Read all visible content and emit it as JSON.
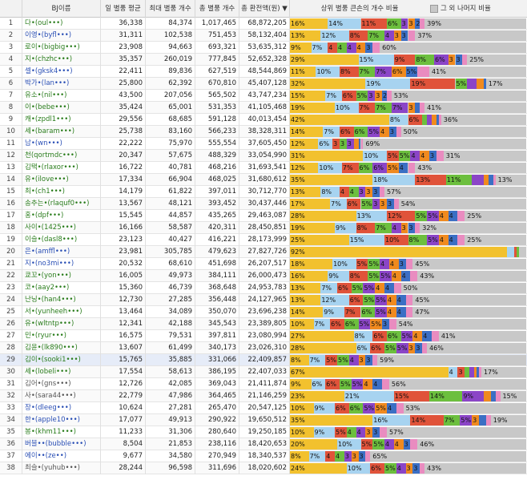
{
  "header": {
    "rank": "",
    "name": "BJ이름",
    "avg": "일 별풍 평균",
    "max": "최대 별풍 개수",
    "total": "총 별풍 개수",
    "revenue": "총 환전액(원) ▼",
    "ratio": "상위 별풍 큰손의 개수 비율",
    "legend": "그 외 나머지 비율"
  },
  "colors": [
    "#f2c12e",
    "#a7d3f0",
    "#e0533a",
    "#6cbf3e",
    "#8b45c7",
    "#f08a1f",
    "#3b6fc4",
    "#e98cc0"
  ],
  "rest_color": "#c8c8c8",
  "rows": [
    {
      "num": "1",
      "name": "다•(oul•••)",
      "avg": "36,338",
      "max": "84,374",
      "total": "1,017,465",
      "rev": "68,872,205",
      "segs": [
        16,
        14,
        11,
        6,
        3,
        3,
        2,
        2
      ],
      "labels": [
        "16%",
        "14%",
        "11%",
        "6%",
        "3",
        "3",
        "2",
        ""
      ],
      "tail": "39%"
    },
    {
      "num": "2",
      "name": "이영•(byfl•••)",
      "avg": "31,311",
      "max": "102,538",
      "total": "751,453",
      "rev": "58,132,404",
      "segs": [
        13,
        12,
        8,
        7,
        4,
        3,
        3,
        3
      ],
      "labels": [
        "13%",
        "12%",
        "8%",
        "7%",
        "4",
        "3",
        "3",
        ""
      ],
      "tail": "37%"
    },
    {
      "num": "3",
      "name": "로이•(bigbig•••)",
      "avg": "23,908",
      "max": "94,663",
      "total": "693,321",
      "rev": "53,635,312",
      "segs": [
        9,
        7,
        4,
        4,
        4,
        4,
        3,
        3
      ],
      "labels": [
        "9%",
        "7%",
        "4",
        "4",
        "4",
        "4",
        "3",
        ""
      ],
      "tail": "60%"
    },
    {
      "num": "4",
      "name": "지•(chzhc•••)",
      "avg": "35,357",
      "max": "260,019",
      "total": "777,845",
      "rev": "52,652,328",
      "segs": [
        29,
        15,
        9,
        8,
        6,
        3,
        3,
        2
      ],
      "labels": [
        "29%",
        "15%",
        "9%",
        "8%",
        "6%",
        "3",
        "3",
        ""
      ],
      "tail": "25%"
    },
    {
      "num": "5",
      "name": "셀•(gksk4•••)",
      "avg": "22,411",
      "max": "89,836",
      "total": "627,519",
      "rev": "48,544,869",
      "segs": [
        11,
        10,
        8,
        7,
        7,
        6,
        5,
        5
      ],
      "labels": [
        "11%",
        "10%",
        "8%",
        "7%",
        "7%",
        "6%",
        "5%",
        ""
      ],
      "tail": "41%"
    },
    {
      "num": "6",
      "name": "박가•(lan•••)",
      "avg": "25,800",
      "max": "62,392",
      "total": "670,810",
      "rev": "45,407,128",
      "segs": [
        32,
        19,
        19,
        5,
        4,
        3,
        1,
        0
      ],
      "labels": [
        "32%",
        "19%",
        "19%",
        "5%",
        "",
        "",
        "",
        ""
      ],
      "tail": "17%"
    },
    {
      "num": "7",
      "name": "유소•(nil•••)",
      "avg": "43,500",
      "max": "207,056",
      "total": "565,502",
      "rev": "43,747,234",
      "segs": [
        15,
        7,
        6,
        5,
        3,
        3,
        2,
        2
      ],
      "labels": [
        "15%",
        "7%",
        "6%",
        "5%",
        "3",
        "3",
        "2",
        ""
      ],
      "tail": "53%"
    },
    {
      "num": "8",
      "name": "이•(bebe•••)",
      "avg": "35,424",
      "max": "65,001",
      "total": "531,353",
      "rev": "41,105,468",
      "segs": [
        19,
        10,
        7,
        7,
        7,
        3,
        2,
        2
      ],
      "labels": [
        "19%",
        "10%",
        "7%",
        "7%",
        "7%",
        "3",
        "",
        ""
      ],
      "tail": "41%"
    },
    {
      "num": "9",
      "name": "캐•(zpdl1•••)",
      "avg": "29,556",
      "max": "68,685",
      "total": "591,128",
      "rev": "40,013,454",
      "segs": [
        42,
        8,
        6,
        2,
        2,
        2,
        1,
        1
      ],
      "labels": [
        "42%",
        "8%",
        "6%",
        "",
        "",
        "",
        "",
        ""
      ],
      "tail": "36%"
    },
    {
      "num": "10",
      "name": "세•(baram•••)",
      "avg": "25,738",
      "max": "83,160",
      "total": "566,233",
      "rev": "38,328,311",
      "segs": [
        14,
        7,
        6,
        6,
        5,
        4,
        3,
        2
      ],
      "labels": [
        "14%",
        "7%",
        "6%",
        "6%",
        "5%",
        "4",
        "3",
        ""
      ],
      "tail": "50%"
    },
    {
      "num": "11",
      "name": "남•(wn•••)",
      "avg": "22,222",
      "max": "75,970",
      "total": "555,554",
      "rev": "37,605,450",
      "segs": [
        12,
        6,
        3,
        3,
        3,
        2,
        1,
        1
      ],
      "labels": [
        "12%",
        "6%",
        "3",
        "3",
        "3",
        "",
        "",
        ""
      ],
      "tail": "69%"
    },
    {
      "num": "12",
      "name": "천(qortmdc•••)",
      "avg": "20,347",
      "max": "57,675",
      "total": "488,329",
      "rev": "33,054,990",
      "segs": [
        31,
        10,
        5,
        5,
        4,
        4,
        3,
        3
      ],
      "labels": [
        "31%",
        "10%",
        "5%",
        "5%",
        "4",
        "4",
        "3",
        ""
      ],
      "tail": "31%"
    },
    {
      "num": "13",
      "name": "김택•(rlaxor•••)",
      "avg": "16,722",
      "max": "40,781",
      "total": "468,216",
      "rev": "31,693,541",
      "segs": [
        12,
        10,
        7,
        6,
        6,
        5,
        4,
        3
      ],
      "labels": [
        "12%",
        "10%",
        "7%",
        "6%",
        "6%",
        "5%",
        "4",
        ""
      ],
      "tail": "43%"
    },
    {
      "num": "14",
      "name": "유•(ilove•••)",
      "avg": "17,334",
      "max": "66,904",
      "total": "468,025",
      "rev": "31,680,612",
      "segs": [
        35,
        18,
        13,
        11,
        5,
        2,
        2,
        1
      ],
      "labels": [
        "35%",
        "18%",
        "13%",
        "11%",
        "",
        "",
        "",
        ""
      ],
      "tail": "13%"
    },
    {
      "num": "15",
      "name": "최•(ch1•••)",
      "avg": "14,179",
      "max": "61,822",
      "total": "397,011",
      "rev": "30,712,770",
      "segs": [
        13,
        8,
        4,
        4,
        3,
        3,
        3,
        2
      ],
      "labels": [
        "13%",
        "8%",
        "4",
        "4",
        "3",
        "3",
        "3",
        ""
      ],
      "tail": "57%"
    },
    {
      "num": "16",
      "name": "송추는•(rlaquf0•••)",
      "avg": "13,567",
      "max": "48,121",
      "total": "393,452",
      "rev": "30,437,446",
      "segs": [
        17,
        7,
        6,
        5,
        3,
        3,
        3,
        2
      ],
      "labels": [
        "17%",
        "7%",
        "6%",
        "5%",
        "3",
        "3",
        "3",
        ""
      ],
      "tail": "54%"
    },
    {
      "num": "17",
      "name": "홍•(dpf•••)",
      "avg": "15,545",
      "max": "44,857",
      "total": "435,265",
      "rev": "29,463,087",
      "segs": [
        28,
        13,
        12,
        5,
        5,
        4,
        4,
        3
      ],
      "labels": [
        "28%",
        "13%",
        "12%",
        "5%",
        "5%",
        "4",
        "4",
        ""
      ],
      "tail": "25%"
    },
    {
      "num": "18",
      "name": "사이•(1425•••)",
      "avg": "16,166",
      "max": "58,587",
      "total": "420,311",
      "rev": "28,450,851",
      "segs": [
        19,
        9,
        8,
        7,
        4,
        3,
        3,
        2
      ],
      "labels": [
        "19%",
        "9%",
        "8%",
        "7%",
        "4",
        "3",
        "3",
        ""
      ],
      "tail": "32%"
    },
    {
      "num": "19",
      "name": "이슬•(dasl8•••)",
      "avg": "23,123",
      "max": "40,427",
      "total": "416,221",
      "rev": "28,173,999",
      "segs": [
        25,
        15,
        10,
        8,
        5,
        4,
        4,
        3
      ],
      "labels": [
        "25%",
        "15%",
        "10%",
        "8%",
        "5%",
        "4",
        "4",
        ""
      ],
      "tail": "25%"
    },
    {
      "num": "20",
      "name": "은•(amffl•••)",
      "avg": "23,981",
      "max": "305,785",
      "total": "479,623",
      "rev": "27,827,726",
      "segs": [
        92,
        3,
        1,
        1,
        0,
        0,
        0,
        0
      ],
      "labels": [
        "92%",
        "",
        "",
        "",
        "",
        "",
        "",
        ""
      ],
      "tail": ""
    },
    {
      "num": "21",
      "name": "지•(no3mi•••)",
      "avg": "20,532",
      "max": "68,610",
      "total": "451,698",
      "rev": "26,207,517",
      "segs": [
        18,
        10,
        5,
        5,
        4,
        4,
        3,
        3
      ],
      "labels": [
        "18%",
        "10%",
        "5%",
        "5%",
        "4",
        "4",
        "3",
        ""
      ],
      "tail": "45%"
    },
    {
      "num": "22",
      "name": "쿄꼬•(yon•••)",
      "avg": "16,005",
      "max": "49,973",
      "total": "384,111",
      "rev": "26,000,473",
      "segs": [
        16,
        9,
        8,
        5,
        5,
        4,
        4,
        3
      ],
      "labels": [
        "16%",
        "9%",
        "8%",
        "5%",
        "5%",
        "4",
        "4",
        ""
      ],
      "tail": "43%"
    },
    {
      "num": "23",
      "name": "코•(aay2•••)",
      "avg": "15,360",
      "max": "46,739",
      "total": "368,648",
      "rev": "24,953,783",
      "segs": [
        13,
        7,
        6,
        5,
        5,
        4,
        4,
        3
      ],
      "labels": [
        "13%",
        "7%",
        "6%",
        "5%",
        "5%",
        "4",
        "4",
        ""
      ],
      "tail": "50%"
    },
    {
      "num": "24",
      "name": "난닝•(han4•••)",
      "avg": "12,730",
      "max": "27,285",
      "total": "356,448",
      "rev": "24,127,965",
      "segs": [
        13,
        12,
        6,
        5,
        5,
        4,
        4,
        3
      ],
      "labels": [
        "13%",
        "12%",
        "6%",
        "5%",
        "5%",
        "4",
        "4",
        ""
      ],
      "tail": "45%"
    },
    {
      "num": "25",
      "name": "서•(yunheeh•••)",
      "avg": "13,464",
      "max": "34,089",
      "total": "350,070",
      "rev": "23,696,238",
      "segs": [
        14,
        9,
        7,
        6,
        5,
        4,
        4,
        3
      ],
      "labels": [
        "14%",
        "9%",
        "7%",
        "6%",
        "5%",
        "4",
        "4",
        ""
      ],
      "tail": "47%"
    },
    {
      "num": "26",
      "name": "유•(wltntp•••)",
      "avg": "12,341",
      "max": "42,188",
      "total": "345,543",
      "rev": "23,389,805",
      "segs": [
        10,
        7,
        6,
        6,
        5,
        5,
        3,
        3
      ],
      "labels": [
        "10%",
        "7%",
        "6%",
        "6%",
        "5%",
        "5%",
        "3",
        ""
      ],
      "tail": "54%"
    },
    {
      "num": "27",
      "name": "민•(ryur•••)",
      "avg": "16,575",
      "max": "79,531",
      "total": "397,811",
      "rev": "23,080,994",
      "segs": [
        27,
        8,
        6,
        6,
        5,
        4,
        4,
        3
      ],
      "labels": [
        "27%",
        "8%",
        "6%",
        "6%",
        "5%",
        "4",
        "4",
        ""
      ],
      "tail": "41%"
    },
    {
      "num": "28",
      "name": "김윤•(lk890•••)",
      "avg": "13,607",
      "max": "61,499",
      "total": "340,173",
      "rev": "23,026,310",
      "segs": [
        28,
        6,
        6,
        5,
        5,
        3,
        3,
        2
      ],
      "labels": [
        "28%",
        "6%",
        "6%",
        "5%",
        "5%",
        "3",
        "3",
        ""
      ],
      "tail": "46%"
    },
    {
      "num": "29",
      "name": "김이•(sooki1•••)",
      "avg": "15,765",
      "max": "35,885",
      "total": "331,066",
      "rev": "22,409,857",
      "segs": [
        8,
        7,
        5,
        5,
        4,
        3,
        3,
        2
      ],
      "labels": [
        "8%",
        "7%",
        "5%",
        "5%",
        "4",
        "3",
        "3",
        ""
      ],
      "tail": "59%"
    },
    {
      "num": "30",
      "name": "세•(lobeli•••)",
      "avg": "17,554",
      "max": "58,613",
      "total": "386,195",
      "rev": "22,407,033",
      "segs": [
        67,
        4,
        3,
        2,
        2,
        1,
        1,
        1
      ],
      "labels": [
        "67%",
        "4",
        "3",
        "",
        "",
        "",
        "",
        ""
      ],
      "tail": "17%"
    },
    {
      "num": "31",
      "name": "김어•(gns•••)",
      "avg": "12,726",
      "max": "42,085",
      "total": "369,043",
      "rev": "21,411,874",
      "segs": [
        9,
        6,
        6,
        5,
        5,
        4,
        4,
        3
      ],
      "labels": [
        "9%",
        "6%",
        "6%",
        "5%",
        "5%",
        "4",
        "4",
        ""
      ],
      "tail": "56%"
    },
    {
      "num": "32",
      "name": "사•(sara44•••)",
      "avg": "22,779",
      "max": "47,986",
      "total": "364,465",
      "rev": "21,146,259",
      "segs": [
        23,
        21,
        15,
        14,
        9,
        3,
        2,
        2
      ],
      "labels": [
        "23%",
        "21%",
        "15%",
        "14%",
        "9%",
        "",
        "",
        ""
      ],
      "tail": "15%"
    },
    {
      "num": "33",
      "name": "장•(dleeg•••)",
      "avg": "10,624",
      "max": "27,281",
      "total": "265,470",
      "rev": "20,547,125",
      "segs": [
        10,
        9,
        6,
        6,
        5,
        5,
        4,
        3
      ],
      "labels": [
        "10%",
        "9%",
        "6%",
        "6%",
        "5%",
        "5%",
        "4",
        ""
      ],
      "tail": "53%"
    },
    {
      "num": "34",
      "name": "한•(apple10•••)",
      "avg": "17,077",
      "max": "49,913",
      "total": "290,922",
      "rev": "19,650,512",
      "segs": [
        35,
        16,
        14,
        7,
        5,
        3,
        3,
        2
      ],
      "labels": [
        "35%",
        "16%",
        "14%",
        "7%",
        "5%",
        "3",
        "",
        ""
      ],
      "tail": "19%"
    },
    {
      "num": "35",
      "name": "봉•(khm11•••)",
      "avg": "11,233",
      "max": "31,306",
      "total": "280,640",
      "rev": "19,250,185",
      "segs": [
        10,
        9,
        5,
        4,
        4,
        3,
        3,
        3
      ],
      "labels": [
        "10%",
        "9%",
        "5%",
        "4",
        "4",
        "3",
        "3",
        ""
      ],
      "tail": "57%"
    },
    {
      "num": "36",
      "name": "버블••(bubble•••)",
      "avg": "8,504",
      "max": "21,853",
      "total": "238,116",
      "rev": "18,420,653",
      "segs": [
        20,
        10,
        5,
        5,
        4,
        4,
        3,
        3
      ],
      "labels": [
        "20%",
        "10%",
        "5%",
        "5%",
        "4",
        "4",
        "3",
        ""
      ],
      "tail": "46%"
    },
    {
      "num": "37",
      "name": "에이••(ze••)",
      "avg": "9,677",
      "max": "34,580",
      "total": "270,949",
      "rev": "18,340,537",
      "segs": [
        8,
        7,
        4,
        4,
        3,
        3,
        3,
        2
      ],
      "labels": [
        "8%",
        "7%",
        "4",
        "4",
        "3",
        "3",
        "3",
        ""
      ],
      "tail": "65%"
    },
    {
      "num": "38",
      "name": "최슬•(yuhub•••)",
      "avg": "28,244",
      "max": "96,598",
      "total": "311,696",
      "rev": "18,020,602",
      "segs": [
        24,
        10,
        6,
        5,
        4,
        3,
        3,
        2
      ],
      "labels": [
        "24%",
        "10%",
        "6%",
        "5%",
        "4",
        "3",
        "3",
        ""
      ],
      "tail": "43%"
    }
  ]
}
